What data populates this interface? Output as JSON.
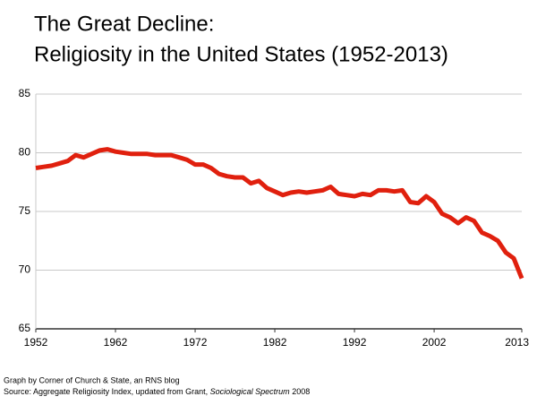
{
  "chart_data": {
    "type": "line",
    "title": [
      "The Great Decline:",
      "Religiosity in the United States (1952-2013)"
    ],
    "x": [
      1952,
      1953,
      1954,
      1955,
      1956,
      1957,
      1958,
      1959,
      1960,
      1961,
      1962,
      1963,
      1964,
      1965,
      1966,
      1967,
      1968,
      1969,
      1970,
      1971,
      1972,
      1973,
      1974,
      1975,
      1976,
      1977,
      1978,
      1979,
      1980,
      1981,
      1982,
      1983,
      1984,
      1985,
      1986,
      1987,
      1988,
      1989,
      1990,
      1991,
      1992,
      1993,
      1994,
      1995,
      1996,
      1997,
      1998,
      1999,
      2000,
      2001,
      2002,
      2003,
      2004,
      2005,
      2006,
      2007,
      2008,
      2009,
      2010,
      2011,
      2012,
      2013
    ],
    "values": [
      78.7,
      78.8,
      78.9,
      79.1,
      79.3,
      79.8,
      79.6,
      79.9,
      80.2,
      80.3,
      80.1,
      80.0,
      79.9,
      79.9,
      79.9,
      79.8,
      79.8,
      79.8,
      79.6,
      79.4,
      79.0,
      79.0,
      78.7,
      78.2,
      78.0,
      77.9,
      77.9,
      77.4,
      77.6,
      77.0,
      76.7,
      76.4,
      76.6,
      76.7,
      76.6,
      76.7,
      76.8,
      77.1,
      76.5,
      76.4,
      76.3,
      76.5,
      76.4,
      76.8,
      76.8,
      76.7,
      76.8,
      75.8,
      75.7,
      76.3,
      75.8,
      74.8,
      74.5,
      74.0,
      74.5,
      74.2,
      73.2,
      72.9,
      72.5,
      71.5,
      71.0,
      69.3
    ],
    "color": "#e0200e",
    "xlim": [
      1952,
      2013
    ],
    "xticks": [
      1952,
      1962,
      1972,
      1982,
      1992,
      2002,
      2013
    ],
    "ylim": [
      65,
      85
    ],
    "yticks": [
      65,
      70,
      75,
      80,
      85
    ],
    "grid": true,
    "credit": "Graph by Corner of Church & State, an RNS blog",
    "source": [
      "Source: Aggregate Religiosity Index, updated from Grant, ",
      "Sociological Spectrum",
      " 2008"
    ]
  }
}
